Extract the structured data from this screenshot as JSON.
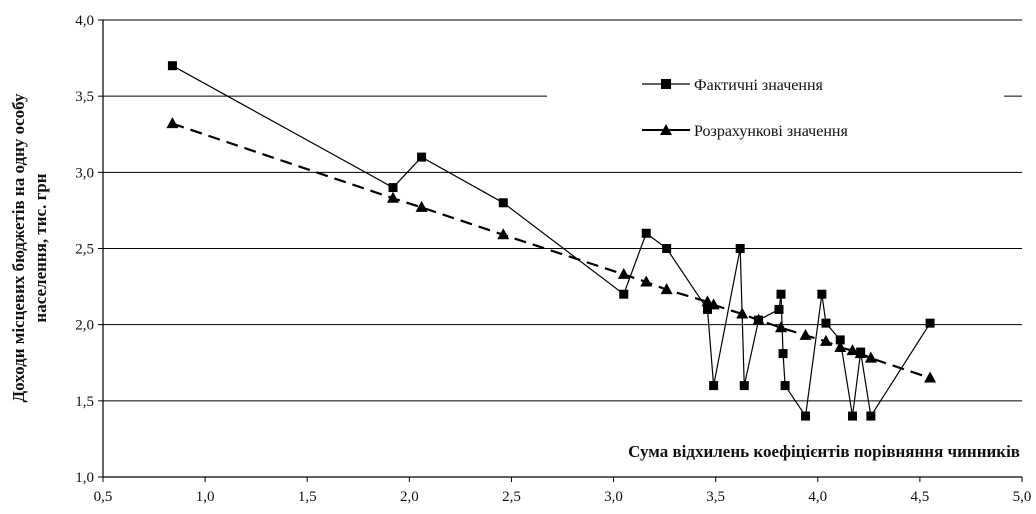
{
  "chart_data": {
    "type": "line",
    "title": "",
    "xlabel": "Сума відхилень коефіцієнтів порівняння чинників",
    "ylabel_line1": "Доходи місцевих бюджетів на одну особу",
    "ylabel_line2": "населення, тис. грн",
    "xlim": [
      0.5,
      5.0
    ],
    "ylim": [
      1.0,
      4.0
    ],
    "x_ticks": [
      "0,5",
      "1,0",
      "1,5",
      "2,0",
      "2,5",
      "3,0",
      "3,5",
      "4,0",
      "4,5",
      "5,0"
    ],
    "y_ticks": [
      "1,0",
      "1,5",
      "2,0",
      "2,5",
      "3,0",
      "3,5",
      "4,0"
    ],
    "grid": "horizontal",
    "legend_position": "top-right",
    "series": [
      {
        "name": "Фактичні значення",
        "marker": "square",
        "line": "solid",
        "color": "#000000",
        "points": [
          [
            0.84,
            3.7
          ],
          [
            1.92,
            2.9
          ],
          [
            2.06,
            3.1
          ],
          [
            2.46,
            2.8
          ],
          [
            3.05,
            2.2
          ],
          [
            3.16,
            2.6
          ],
          [
            3.26,
            2.5
          ],
          [
            3.46,
            2.1
          ],
          [
            3.49,
            1.6
          ],
          [
            3.62,
            2.5
          ],
          [
            3.64,
            1.6
          ],
          [
            3.71,
            2.03
          ],
          [
            3.81,
            2.1
          ],
          [
            3.82,
            2.2
          ],
          [
            3.83,
            1.81
          ],
          [
            3.84,
            1.6
          ],
          [
            3.94,
            1.4
          ],
          [
            4.02,
            2.2
          ],
          [
            4.04,
            2.01
          ],
          [
            4.11,
            1.9
          ],
          [
            4.17,
            1.4
          ],
          [
            4.21,
            1.82
          ],
          [
            4.26,
            1.4
          ],
          [
            4.55,
            2.01
          ]
        ]
      },
      {
        "name": "Розрахункові значення",
        "marker": "triangle",
        "line": "dashed",
        "color": "#000000",
        "points": [
          [
            0.84,
            3.32
          ],
          [
            1.92,
            2.83
          ],
          [
            2.06,
            2.77
          ],
          [
            2.46,
            2.59
          ],
          [
            3.05,
            2.33
          ],
          [
            3.16,
            2.28
          ],
          [
            3.26,
            2.23
          ],
          [
            3.46,
            2.15
          ],
          [
            3.49,
            2.13
          ],
          [
            3.63,
            2.07
          ],
          [
            3.71,
            2.03
          ],
          [
            3.82,
            1.98
          ],
          [
            3.94,
            1.93
          ],
          [
            4.04,
            1.89
          ],
          [
            4.11,
            1.85
          ],
          [
            4.17,
            1.83
          ],
          [
            4.21,
            1.81
          ],
          [
            4.26,
            1.78
          ],
          [
            4.55,
            1.65
          ]
        ]
      }
    ]
  }
}
